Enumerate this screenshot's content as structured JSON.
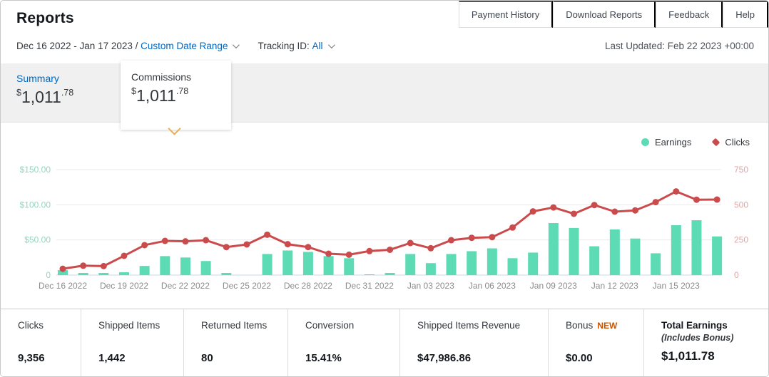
{
  "header": {
    "title": "Reports",
    "buttons": [
      "Payment History",
      "Download Reports",
      "Feedback",
      "Help"
    ]
  },
  "filters": {
    "date_range": "Dec 16 2022 - Jan 17 2023 /",
    "date_range_link": "Custom Date Range",
    "tracking_label": "Tracking ID:",
    "tracking_value": "All",
    "last_updated": "Last Updated: Feb 22 2023 +00:00"
  },
  "summary_tab": {
    "label": "Summary",
    "currency": "$",
    "amount_main": "1,011",
    "amount_cents": ".78"
  },
  "commissions_popup": {
    "label": "Commissions",
    "currency": "$",
    "amount_main": "1,011",
    "amount_cents": ".78"
  },
  "icons": {
    "chevron-down": "css-chevron",
    "earnings-marker": "filled-circle",
    "clicks-marker": "filled-diamond",
    "popup-pointer": "orange-open-caret-down"
  },
  "colors": {
    "earnings": "#5cdbb4",
    "clicks": "#cb4b4d",
    "left_axis_label": "#93d5c0",
    "right_axis_label": "#dfa4a5",
    "grid": "#e9e9e9",
    "baseline": "#c8d8df",
    "x_label": "#8b8b8b",
    "link": "#0066c0",
    "new_badge": "#c45500"
  },
  "chart_data": {
    "type": "bar",
    "combo": "bar+line",
    "title": "",
    "grid": true,
    "legend_position": "top-right",
    "x_tick_every": 3,
    "x": [
      "Dec 16 2022",
      "Dec 17 2022",
      "Dec 18 2022",
      "Dec 19 2022",
      "Dec 20 2022",
      "Dec 21 2022",
      "Dec 22 2022",
      "Dec 23 2022",
      "Dec 24 2022",
      "Dec 25 2022",
      "Dec 26 2022",
      "Dec 27 2022",
      "Dec 28 2022",
      "Dec 29 2022",
      "Dec 30 2022",
      "Dec 31 2022",
      "Jan 01 2023",
      "Jan 02 2023",
      "Jan 03 2023",
      "Jan 04 2023",
      "Jan 05 2023",
      "Jan 06 2023",
      "Jan 07 2023",
      "Jan 08 2023",
      "Jan 09 2023",
      "Jan 10 2023",
      "Jan 11 2023",
      "Jan 12 2023",
      "Jan 13 2023",
      "Jan 14 2023",
      "Jan 15 2023",
      "Jan 16 2023",
      "Jan 17 2023"
    ],
    "series": [
      {
        "name": "Earnings",
        "type": "bar",
        "axis": "left",
        "values": [
          7,
          3,
          3,
          4,
          13,
          27,
          25,
          20,
          3,
          0,
          30,
          35,
          33,
          27,
          24,
          1,
          3,
          30,
          17,
          30,
          34,
          38,
          24,
          32,
          74,
          67,
          41,
          65,
          52,
          31,
          71,
          78,
          55
        ]
      },
      {
        "name": "Clicks",
        "type": "line",
        "axis": "right",
        "values": [
          45,
          67,
          64,
          137,
          213,
          243,
          240,
          248,
          199,
          218,
          287,
          220,
          199,
          152,
          145,
          171,
          180,
          228,
          191,
          248,
          265,
          270,
          338,
          453,
          481,
          436,
          498,
          451,
          460,
          519,
          595,
          536,
          537
        ]
      }
    ],
    "left_axis": {
      "max": 150,
      "values": [
        0,
        50,
        100,
        150
      ],
      "labels": [
        "0",
        "$50.00",
        "$100.00",
        "$150.00"
      ]
    },
    "right_axis": {
      "max": 750,
      "values": [
        0,
        250,
        500,
        750
      ],
      "labels": [
        "0",
        "250",
        "500",
        "750"
      ]
    }
  },
  "stats": {
    "items": [
      {
        "label": "Clicks",
        "value": "9,356"
      },
      {
        "label": "Shipped Items",
        "value": "1,442"
      },
      {
        "label": "Returned Items",
        "value": "80"
      },
      {
        "label": "Conversion",
        "value": "15.41%"
      },
      {
        "label": "Shipped Items Revenue",
        "value": "$47,986.86"
      },
      {
        "label": "Bonus",
        "badge": "NEW",
        "value": "$0.00"
      },
      {
        "label": "Total Earnings",
        "sub_label": "(Includes Bonus)",
        "value": "$1,011.78"
      }
    ]
  }
}
